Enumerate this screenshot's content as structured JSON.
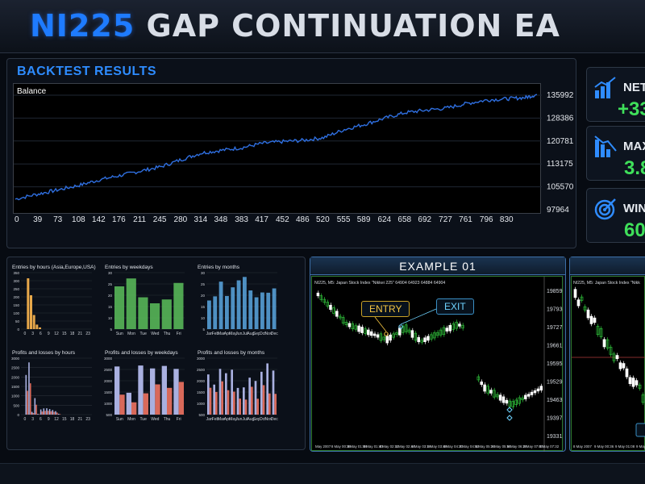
{
  "header": {
    "title_part1": "NI225",
    "title_part2": "GAP CONTINUATION EA"
  },
  "backtest": {
    "title": "BACKTEST RESULTS",
    "chart_label": "Balance",
    "line_color": "#2f6fe0"
  },
  "chart_data": {
    "type": "line",
    "title": "Balance",
    "x_ticks": [
      "0",
      "39",
      "73",
      "108",
      "142",
      "176",
      "211",
      "245",
      "280",
      "314",
      "348",
      "383",
      "417",
      "452",
      "486",
      "520",
      "555",
      "589",
      "624",
      "658",
      "692",
      "727",
      "761",
      "796",
      "830"
    ],
    "y_ticks": [
      "135992",
      "128386",
      "120781",
      "113175",
      "105570",
      "97964"
    ],
    "series": [
      {
        "x": [
          0,
          39,
          73,
          108,
          142,
          176,
          211,
          245,
          280,
          314,
          348,
          383,
          417,
          452,
          486,
          520,
          555,
          589,
          624,
          658,
          692,
          727,
          761,
          796,
          830,
          860,
          880
        ],
        "values": [
          101500,
          103200,
          104600,
          106100,
          107900,
          109300,
          110800,
          112200,
          114600,
          116800,
          117700,
          118600,
          120000,
          120600,
          121000,
          121900,
          124600,
          126300,
          128400,
          130200,
          131000,
          131700,
          133200,
          134400,
          134800,
          135200,
          136200
        ]
      }
    ]
  },
  "stats": [
    {
      "label": "NET",
      "value": "+33",
      "icon": "bar-growth-icon"
    },
    {
      "label": "MAX",
      "value": "3.8",
      "icon": "bar-decline-icon"
    },
    {
      "label": "WIN",
      "value": "60",
      "icon": "target-icon"
    }
  ],
  "minis": [
    {
      "title": "Entries by hours (Asia,Europe,USA)",
      "ticks": [
        "0",
        "3",
        "6",
        "9",
        "12",
        "15",
        "18",
        "21",
        "23"
      ],
      "y": [
        "350",
        "300",
        "250",
        "200",
        "150",
        "100",
        "50",
        "0"
      ],
      "color": "#e8a84a"
    },
    {
      "title": "Entries by weekdays",
      "ticks": [
        "Sun",
        "Mon",
        "Tue",
        "Wed",
        "Thu",
        "Fri"
      ],
      "y": [
        "30",
        "25",
        "20",
        "15",
        "10",
        "5"
      ],
      "color": "#5cbf5c"
    },
    {
      "title": "Entries by months",
      "ticks": [
        "Jan",
        "Feb",
        "Mar",
        "Apr",
        "May",
        "Jun",
        "Jul",
        "Aug",
        "Sep",
        "Oct",
        "Nov",
        "Dec"
      ],
      "y": [
        "30",
        "25",
        "20",
        "15",
        "10",
        "5"
      ],
      "color": "#5aa7e0"
    },
    {
      "title": "Profits and losses by hours",
      "ticks": [
        "0",
        "3",
        "6",
        "9",
        "12",
        "15",
        "18",
        "21",
        "23"
      ],
      "y": [
        "3000",
        "2500",
        "2000",
        "1500",
        "1000",
        "500",
        "0"
      ],
      "color": "#9aa3d6"
    },
    {
      "title": "Profits and losses by weekdays",
      "ticks": [
        "Sun",
        "Mon",
        "Tue",
        "Wed",
        "Thu",
        "Fri"
      ],
      "y": [
        "3000",
        "2500",
        "2000",
        "1500",
        "1000",
        "500"
      ],
      "color": "#9aa3d6"
    },
    {
      "title": "Profits and losses by months",
      "ticks": [
        "Jan",
        "Feb",
        "Mar",
        "Apr",
        "May",
        "Jun",
        "Jul",
        "Aug",
        "Sep",
        "Oct",
        "Nov",
        "Dec"
      ],
      "y": [
        "3000",
        "2500",
        "2000",
        "1500",
        "1000",
        "500"
      ],
      "color": "#9aa3d6"
    }
  ],
  "example1": {
    "title": "EXAMPLE 01",
    "info": "NI225, M5:  Japan Stock Index \"Nikkei 225\"  64904 64923 64884 64904",
    "entry_label": "ENTRY",
    "exit_label": "EXIT",
    "y_ticks": [
      "19859",
      "19793",
      "19727",
      "19661",
      "19595",
      "19529",
      "19463",
      "19397",
      "19331"
    ],
    "x_ticks": [
      "May 2007",
      "8 May 00:36",
      "8 May 01:08",
      "8 May 01:40",
      "8 May 02:12",
      "8 May 02:44",
      "8 May 03:16",
      "8 May 03:48",
      "8 May 04:20",
      "8 May 04:52",
      "8 May 05:24",
      "8 May 05:56",
      "8 May 06:28",
      "8 May 07:00",
      "8 May 07:32"
    ]
  },
  "example2": {
    "info": "NI225, M5:  Japan Stock Index \"Nikk",
    "x_ticks": [
      "8 May 2007",
      "9 May 00:36",
      "9 May 01:08",
      "9 May"
    ]
  },
  "colors": {
    "accent": "#1e7bff",
    "positive": "#3fe05a",
    "candle_up": "#2fbf3a",
    "candle_down": "#ffffff",
    "grid": "#2a2f38"
  }
}
